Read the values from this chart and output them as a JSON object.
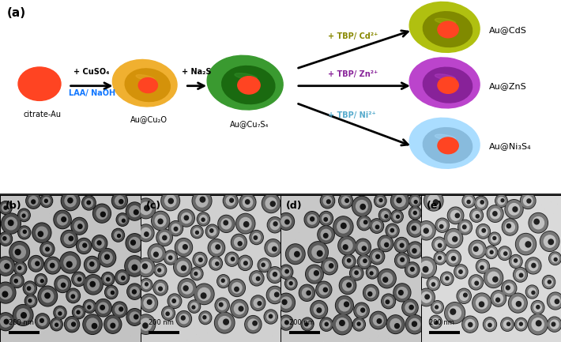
{
  "panel_a_label": "(a)",
  "panel_b_label": "(b)",
  "panel_c_label": "(c)",
  "panel_d_label": "(d)",
  "panel_e_label": "(e)",
  "citrate_au_label": "citrate-Au",
  "au_cu2o_label": "Au@Cu₂O",
  "au_cu7s4_label": "Au@Cu₇S₄",
  "au_cds_label": "Au@CdS",
  "au_zns_label": "Au@ZnS",
  "au_ni3s4_label": "Au@Ni₃S₄",
  "arrow1_text_line1": "+ CuSO₄",
  "arrow1_text_line2": "LAA/ NaOH",
  "arrow2_text": "+ Na₂S",
  "arrow3_text": "+ TBP/ Cd²⁺",
  "arrow4_text": "+ TBP/ Zn²⁺",
  "arrow5_text": "+ TBP/ Ni²⁺",
  "scale_bar_text": "200 nm",
  "colors": {
    "red_yolk": "#CC2200",
    "red_yolk_dark": "#881100",
    "red_yolk_light": "#FF4422",
    "cu2o_outer": "#D4920A",
    "cu2o_outer_dark": "#9A6A00",
    "cu2o_outer_light": "#F0B030",
    "cu2o_inner": "#B87010",
    "cu7s4_outer": "#1A6A10",
    "cu7s4_outer_dark": "#0A3A05",
    "cu7s4_outer_light": "#3A9A30",
    "cu7s4_inner": "#0D4A08",
    "cds_outer": "#808A00",
    "cds_outer_dark": "#505800",
    "cds_outer_light": "#B0C010",
    "cds_inner": "#505800",
    "zns_outer": "#882299",
    "zns_outer_dark": "#550066",
    "zns_outer_light": "#BB44CC",
    "zns_inner": "#660088",
    "ni3s4_outer": "#88BBDD",
    "ni3s4_outer_dark": "#4488AA",
    "ni3s4_outer_light": "#AADDFF",
    "ni3s4_inner": "#5599BB",
    "arrow_color": "#000000",
    "cuso4_color": "#000000",
    "laa_color": "#1177FF",
    "tbp_cd_color": "#888800",
    "tbp_zn_color": "#882299",
    "tbp_ni_color": "#55AACC",
    "background": "#FFFFFF"
  }
}
